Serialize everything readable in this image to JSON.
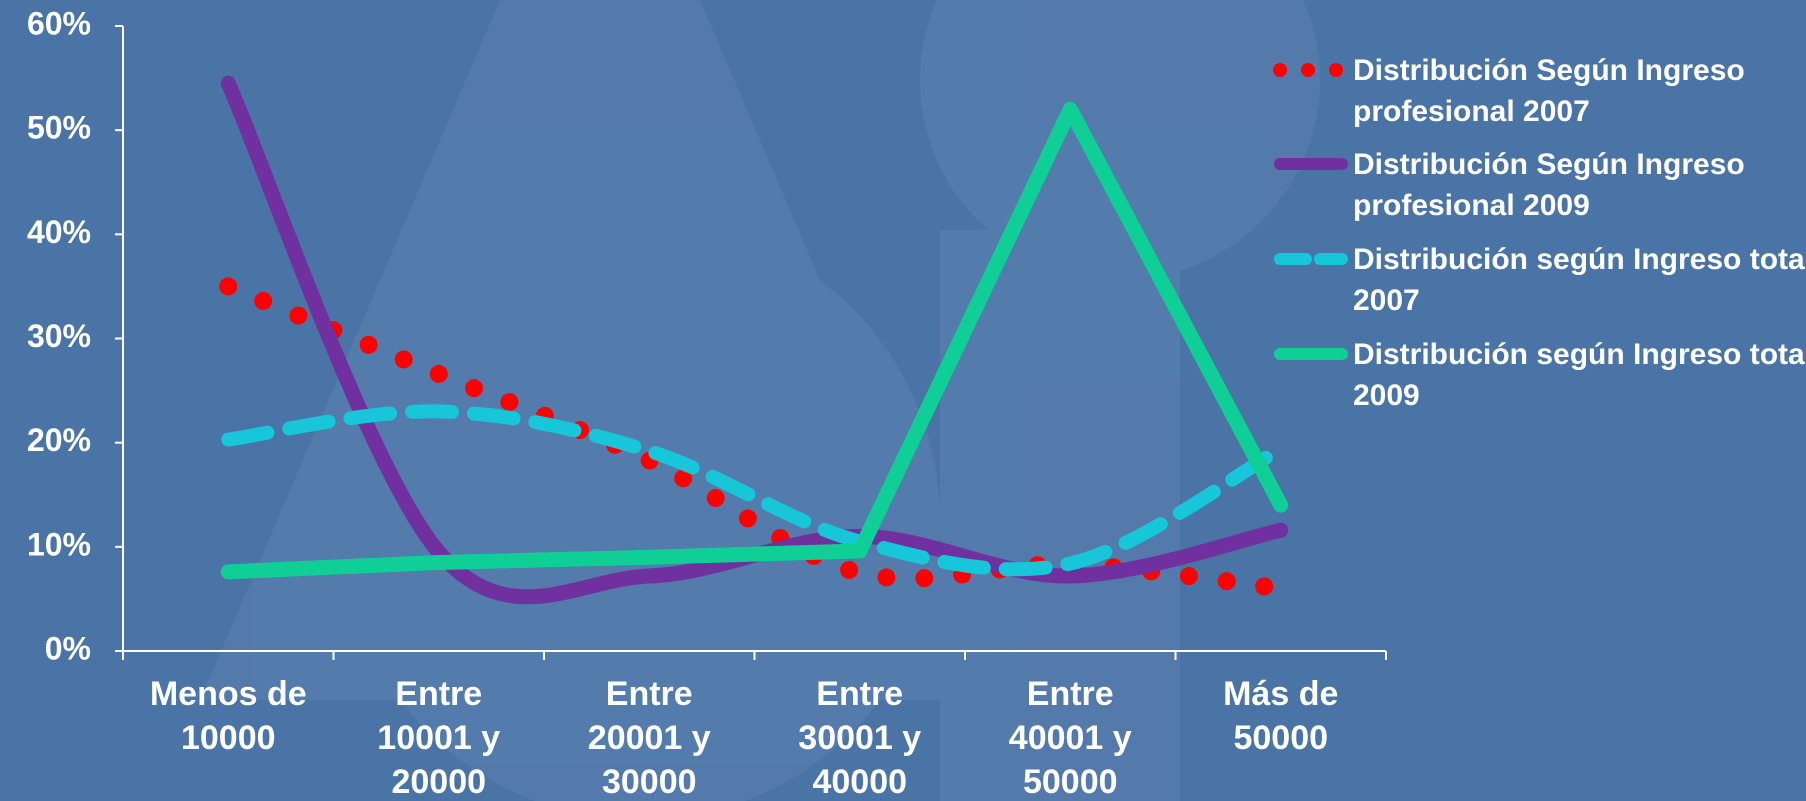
{
  "chart_data": {
    "type": "line",
    "categories": [
      "Menos de 10000",
      "Entre 10001 y 20000",
      "Entre 20001 y 30000",
      "Entre 30001 y 40000",
      "Entre 40001 y 50000",
      "Más de 50000"
    ],
    "series": [
      {
        "name": "Distribución Según Ingreso profesional 2007",
        "color": "#ff0000",
        "style": "dotted",
        "smooth": true,
        "values": [
          35,
          26.6,
          18.3,
          7.5,
          8.3,
          6
        ]
      },
      {
        "name": "Distribución Según Ingreso profesional 2009",
        "color": "#7030a0",
        "style": "solid",
        "smooth": true,
        "values": [
          54.5,
          9.5,
          7.2,
          11,
          7.2,
          11.6
        ]
      },
      {
        "name": "Distribución según Ingreso total 2007",
        "color": "#17c6d8",
        "style": "dashed",
        "smooth": true,
        "values": [
          20.3,
          23,
          19.2,
          10.5,
          8.4,
          19.4
        ]
      },
      {
        "name": "Distribución según Ingreso total 2009",
        "color": "#0fce96",
        "style": "solid",
        "smooth": false,
        "values": [
          7.6,
          8.5,
          9,
          9.6,
          52,
          14
        ]
      }
    ],
    "ylim": [
      0,
      60
    ],
    "yticks": [
      {
        "value": 0,
        "label": "0%"
      },
      {
        "value": 10,
        "label": "10%"
      },
      {
        "value": 20,
        "label": "20%"
      },
      {
        "value": 30,
        "label": "30%"
      },
      {
        "value": 40,
        "label": "40%"
      },
      {
        "value": 50,
        "label": "50%"
      },
      {
        "value": 60,
        "label": "60%"
      }
    ],
    "grid": false,
    "legend": "right"
  }
}
